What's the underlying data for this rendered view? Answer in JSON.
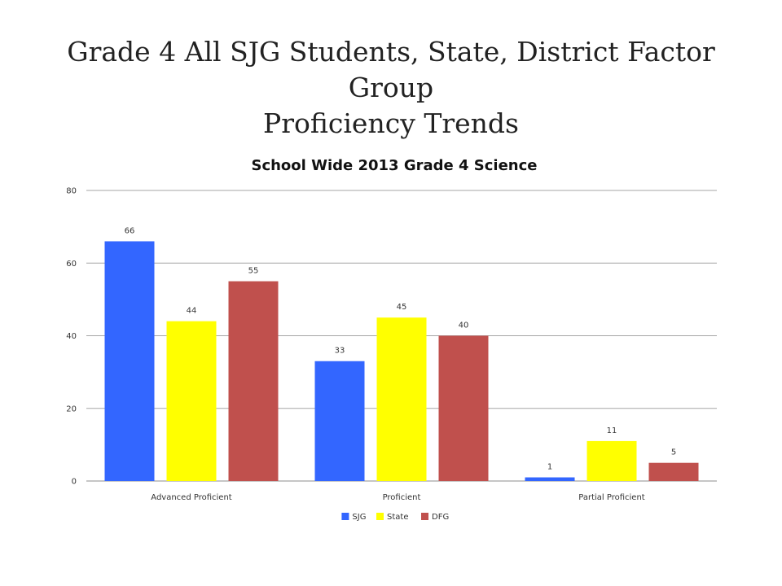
{
  "slide": {
    "title_line1": "Grade 4 All SJG Students, State, District Factor Group",
    "title_line2": "Proficiency Trends"
  },
  "chart_data": {
    "type": "bar",
    "title": "School Wide 2013 Grade 4 Science",
    "categories": [
      "Advanced Proficient",
      "Proficient",
      "Partial Proficient"
    ],
    "series": [
      {
        "name": "SJG",
        "color": "#3366FF",
        "values": [
          66,
          33,
          1
        ]
      },
      {
        "name": "State",
        "color": "#FFFF00",
        "values": [
          44,
          45,
          11
        ]
      },
      {
        "name": "DFG",
        "color": "#C0504D",
        "values": [
          55,
          40,
          5
        ]
      }
    ],
    "ylim": [
      0,
      80
    ],
    "yticks": [
      0,
      20,
      40,
      60,
      80
    ],
    "grid": true,
    "legend": "bottom",
    "data_labels": true
  }
}
